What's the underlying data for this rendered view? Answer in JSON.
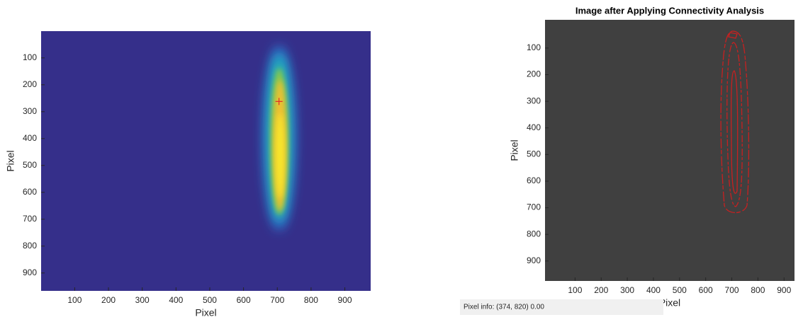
{
  "chart_data": [
    {
      "type": "image",
      "xlabel": "Pixel",
      "ylabel": "Pixel",
      "xlim": [
        0.5,
        976.5
      ],
      "ylim": [
        0.5,
        966.5
      ],
      "xticks": [
        100,
        200,
        300,
        400,
        500,
        600,
        700,
        800,
        900
      ],
      "yticks": [
        100,
        200,
        300,
        400,
        500,
        600,
        700,
        800,
        900
      ],
      "background": "#352f8a",
      "marker": {
        "x": 705,
        "y": 262,
        "color": "#e0302a"
      }
    },
    {
      "type": "image",
      "title": "Image after Applying Connectivity Analysis",
      "xlabel": "Pixel",
      "ylabel": "Pixel",
      "xlim": [
        -15,
        940
      ],
      "ylim": [
        -6,
        975
      ],
      "xticks": [
        100,
        200,
        300,
        400,
        500,
        600,
        700,
        800,
        900
      ],
      "yticks": [
        100,
        200,
        300,
        400,
        500,
        600,
        700,
        800,
        900
      ],
      "background": "#404040"
    }
  ],
  "pixel_info": "Pixel info: (374, 820)  0.00"
}
